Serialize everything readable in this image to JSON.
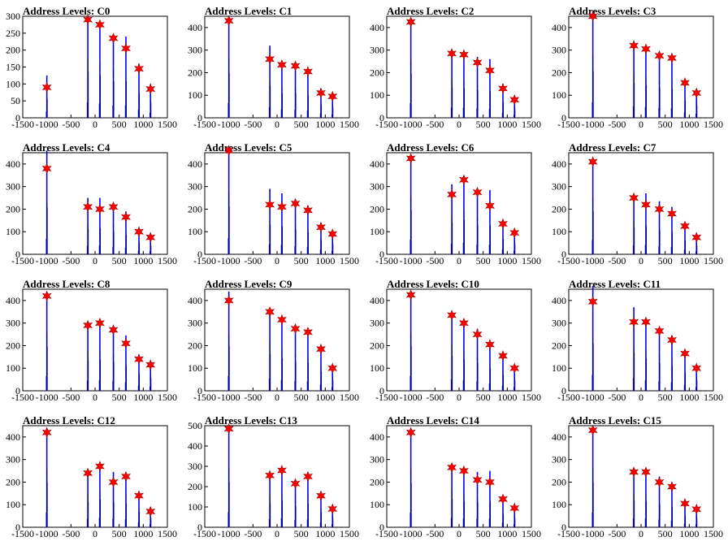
{
  "colors": {
    "bar": "#0000ff",
    "marker": "#ff0000",
    "marker_edge": "#990000",
    "axis": "#000000"
  },
  "chart_data": [
    {
      "type": "bar",
      "title": "Address Levels: C0",
      "xlim": [
        -1500,
        1500
      ],
      "ylim": [
        0,
        300
      ],
      "yticks": [
        0,
        50,
        100,
        150,
        200,
        250,
        300
      ],
      "xticks": [
        -1500,
        -1000,
        -500,
        0,
        500,
        1000,
        1500
      ],
      "peaks": [
        {
          "x": -1000,
          "y": 90,
          "bar": 125
        },
        {
          "x": -150,
          "y": 290,
          "bar": 300
        },
        {
          "x": 100,
          "y": 275,
          "bar": 280
        },
        {
          "x": 380,
          "y": 235,
          "bar": 240
        },
        {
          "x": 640,
          "y": 205,
          "bar": 240
        },
        {
          "x": 910,
          "y": 145,
          "bar": 160
        },
        {
          "x": 1150,
          "y": 85,
          "bar": 100
        }
      ]
    },
    {
      "type": "bar",
      "title": "Address Levels: C1",
      "xlim": [
        -1500,
        1500
      ],
      "ylim": [
        0,
        450
      ],
      "yticks": [
        0,
        100,
        200,
        300,
        400
      ],
      "xticks": [
        -1500,
        -1000,
        -500,
        0,
        500,
        1000,
        1500
      ],
      "peaks": [
        {
          "x": -1000,
          "y": 430,
          "bar": 440
        },
        {
          "x": -150,
          "y": 260,
          "bar": 320
        },
        {
          "x": 100,
          "y": 235,
          "bar": 240
        },
        {
          "x": 380,
          "y": 230,
          "bar": 240
        },
        {
          "x": 640,
          "y": 205,
          "bar": 215
        },
        {
          "x": 910,
          "y": 110,
          "bar": 130
        },
        {
          "x": 1150,
          "y": 95,
          "bar": 100
        }
      ]
    },
    {
      "type": "bar",
      "title": "Address Levels: C2",
      "xlim": [
        -1500,
        1500
      ],
      "ylim": [
        0,
        450
      ],
      "yticks": [
        0,
        100,
        200,
        300,
        400
      ],
      "xticks": [
        -1500,
        -1000,
        -500,
        0,
        500,
        1000,
        1500
      ],
      "peaks": [
        {
          "x": -1000,
          "y": 425,
          "bar": 435
        },
        {
          "x": -150,
          "y": 285,
          "bar": 300
        },
        {
          "x": 100,
          "y": 280,
          "bar": 290
        },
        {
          "x": 380,
          "y": 245,
          "bar": 270
        },
        {
          "x": 640,
          "y": 210,
          "bar": 260
        },
        {
          "x": 910,
          "y": 130,
          "bar": 150
        },
        {
          "x": 1150,
          "y": 80,
          "bar": 90
        }
      ]
    },
    {
      "type": "bar",
      "title": "Address Levels: C3",
      "xlim": [
        -1500,
        1500
      ],
      "ylim": [
        0,
        450
      ],
      "yticks": [
        0,
        100,
        200,
        300,
        400
      ],
      "xticks": [
        -1500,
        -1000,
        -500,
        0,
        500,
        1000,
        1500
      ],
      "peaks": [
        {
          "x": -1000,
          "y": 450,
          "bar": 460
        },
        {
          "x": -150,
          "y": 320,
          "bar": 340
        },
        {
          "x": 100,
          "y": 305,
          "bar": 320
        },
        {
          "x": 380,
          "y": 275,
          "bar": 290
        },
        {
          "x": 640,
          "y": 265,
          "bar": 280
        },
        {
          "x": 910,
          "y": 155,
          "bar": 165
        },
        {
          "x": 1150,
          "y": 110,
          "bar": 120
        }
      ]
    },
    {
      "type": "bar",
      "title": "Address Levels: C4",
      "xlim": [
        -1500,
        1500
      ],
      "ylim": [
        0,
        450
      ],
      "yticks": [
        0,
        100,
        200,
        300,
        400
      ],
      "xticks": [
        -1500,
        -1000,
        -500,
        0,
        500,
        1000,
        1500
      ],
      "peaks": [
        {
          "x": -1000,
          "y": 380,
          "bar": 460
        },
        {
          "x": -150,
          "y": 210,
          "bar": 250
        },
        {
          "x": 100,
          "y": 200,
          "bar": 250
        },
        {
          "x": 380,
          "y": 210,
          "bar": 220
        },
        {
          "x": 640,
          "y": 165,
          "bar": 190
        },
        {
          "x": 910,
          "y": 100,
          "bar": 110
        },
        {
          "x": 1150,
          "y": 75,
          "bar": 85
        }
      ]
    },
    {
      "type": "bar",
      "title": "Address Levels: C5",
      "xlim": [
        -1500,
        1500
      ],
      "ylim": [
        0,
        450
      ],
      "yticks": [
        0,
        100,
        200,
        300,
        400
      ],
      "xticks": [
        -1500,
        -1000,
        -500,
        0,
        500,
        1000,
        1500
      ],
      "peaks": [
        {
          "x": -1000,
          "y": 460,
          "bar": 470
        },
        {
          "x": -150,
          "y": 220,
          "bar": 290
        },
        {
          "x": 100,
          "y": 210,
          "bar": 270
        },
        {
          "x": 380,
          "y": 225,
          "bar": 240
        },
        {
          "x": 640,
          "y": 195,
          "bar": 215
        },
        {
          "x": 910,
          "y": 120,
          "bar": 140
        },
        {
          "x": 1150,
          "y": 90,
          "bar": 100
        }
      ]
    },
    {
      "type": "bar",
      "title": "Address Levels: C6",
      "xlim": [
        -1500,
        1500
      ],
      "ylim": [
        0,
        450
      ],
      "yticks": [
        0,
        100,
        200,
        300,
        400
      ],
      "xticks": [
        -1500,
        -1000,
        -500,
        0,
        500,
        1000,
        1500
      ],
      "peaks": [
        {
          "x": -1000,
          "y": 425,
          "bar": 435
        },
        {
          "x": -150,
          "y": 265,
          "bar": 310
        },
        {
          "x": 100,
          "y": 330,
          "bar": 340
        },
        {
          "x": 380,
          "y": 275,
          "bar": 285
        },
        {
          "x": 640,
          "y": 215,
          "bar": 285
        },
        {
          "x": 910,
          "y": 135,
          "bar": 150
        },
        {
          "x": 1150,
          "y": 95,
          "bar": 100
        }
      ]
    },
    {
      "type": "bar",
      "title": "Address Levels: C7",
      "xlim": [
        -1500,
        1500
      ],
      "ylim": [
        0,
        450
      ],
      "yticks": [
        0,
        100,
        200,
        300,
        400
      ],
      "xticks": [
        -1500,
        -1000,
        -500,
        0,
        500,
        1000,
        1500
      ],
      "peaks": [
        {
          "x": -1000,
          "y": 410,
          "bar": 420
        },
        {
          "x": -150,
          "y": 250,
          "bar": 260
        },
        {
          "x": 100,
          "y": 220,
          "bar": 270
        },
        {
          "x": 380,
          "y": 200,
          "bar": 235
        },
        {
          "x": 640,
          "y": 180,
          "bar": 210
        },
        {
          "x": 910,
          "y": 125,
          "bar": 135
        },
        {
          "x": 1150,
          "y": 75,
          "bar": 85
        }
      ]
    },
    {
      "type": "bar",
      "title": "Address Levels: C8",
      "xlim": [
        -1500,
        1500
      ],
      "ylim": [
        0,
        450
      ],
      "yticks": [
        0,
        100,
        200,
        300,
        400
      ],
      "xticks": [
        -1500,
        -1000,
        -500,
        0,
        500,
        1000,
        1500
      ],
      "peaks": [
        {
          "x": -1000,
          "y": 420,
          "bar": 430
        },
        {
          "x": -150,
          "y": 290,
          "bar": 300
        },
        {
          "x": 100,
          "y": 300,
          "bar": 305
        },
        {
          "x": 380,
          "y": 270,
          "bar": 280
        },
        {
          "x": 640,
          "y": 210,
          "bar": 245
        },
        {
          "x": 910,
          "y": 140,
          "bar": 160
        },
        {
          "x": 1150,
          "y": 115,
          "bar": 125
        }
      ]
    },
    {
      "type": "bar",
      "title": "Address Levels: C9",
      "xlim": [
        -1500,
        1500
      ],
      "ylim": [
        0,
        450
      ],
      "yticks": [
        0,
        100,
        200,
        300,
        400
      ],
      "xticks": [
        -1500,
        -1000,
        -500,
        0,
        500,
        1000,
        1500
      ],
      "peaks": [
        {
          "x": -1000,
          "y": 400,
          "bar": 440
        },
        {
          "x": -150,
          "y": 350,
          "bar": 360
        },
        {
          "x": 100,
          "y": 315,
          "bar": 320
        },
        {
          "x": 380,
          "y": 275,
          "bar": 285
        },
        {
          "x": 640,
          "y": 260,
          "bar": 275
        },
        {
          "x": 910,
          "y": 185,
          "bar": 190
        },
        {
          "x": 1150,
          "y": 100,
          "bar": 105
        }
      ]
    },
    {
      "type": "bar",
      "title": "Address Levels: C10",
      "xlim": [
        -1500,
        1500
      ],
      "ylim": [
        0,
        450
      ],
      "yticks": [
        0,
        100,
        200,
        300,
        400
      ],
      "xticks": [
        -1500,
        -1000,
        -500,
        0,
        500,
        1000,
        1500
      ],
      "peaks": [
        {
          "x": -1000,
          "y": 425,
          "bar": 440
        },
        {
          "x": -150,
          "y": 335,
          "bar": 340
        },
        {
          "x": 100,
          "y": 300,
          "bar": 310
        },
        {
          "x": 380,
          "y": 250,
          "bar": 275
        },
        {
          "x": 640,
          "y": 205,
          "bar": 215
        },
        {
          "x": 910,
          "y": 155,
          "bar": 160
        },
        {
          "x": 1150,
          "y": 100,
          "bar": 105
        }
      ]
    },
    {
      "type": "bar",
      "title": "Address Levels: C11",
      "xlim": [
        -1500,
        1500
      ],
      "ylim": [
        0,
        450
      ],
      "yticks": [
        0,
        100,
        200,
        300,
        400
      ],
      "xticks": [
        -1500,
        -1000,
        -500,
        0,
        500,
        1000,
        1500
      ],
      "peaks": [
        {
          "x": -1000,
          "y": 395,
          "bar": 465
        },
        {
          "x": -150,
          "y": 305,
          "bar": 370
        },
        {
          "x": 100,
          "y": 305,
          "bar": 315
        },
        {
          "x": 380,
          "y": 265,
          "bar": 270
        },
        {
          "x": 640,
          "y": 225,
          "bar": 245
        },
        {
          "x": 910,
          "y": 165,
          "bar": 175
        },
        {
          "x": 1150,
          "y": 100,
          "bar": 105
        }
      ]
    },
    {
      "type": "bar",
      "title": "Address Levels: C12",
      "xlim": [
        -1500,
        1500
      ],
      "ylim": [
        0,
        450
      ],
      "yticks": [
        0,
        100,
        200,
        300,
        400
      ],
      "xticks": [
        -1500,
        -1000,
        -500,
        0,
        500,
        1000,
        1500
      ],
      "peaks": [
        {
          "x": -1000,
          "y": 420,
          "bar": 440
        },
        {
          "x": -150,
          "y": 240,
          "bar": 250
        },
        {
          "x": 100,
          "y": 270,
          "bar": 275
        },
        {
          "x": 380,
          "y": 200,
          "bar": 245
        },
        {
          "x": 640,
          "y": 225,
          "bar": 235
        },
        {
          "x": 910,
          "y": 140,
          "bar": 150
        },
        {
          "x": 1150,
          "y": 70,
          "bar": 90
        }
      ]
    },
    {
      "type": "bar",
      "title": "Address Levels: C13",
      "xlim": [
        -1500,
        1500
      ],
      "ylim": [
        0,
        500
      ],
      "yticks": [
        0,
        100,
        200,
        300,
        400,
        500
      ],
      "xticks": [
        -1500,
        -1000,
        -500,
        0,
        500,
        1000,
        1500
      ],
      "peaks": [
        {
          "x": -1000,
          "y": 485,
          "bar": 490
        },
        {
          "x": -150,
          "y": 255,
          "bar": 265
        },
        {
          "x": 100,
          "y": 280,
          "bar": 290
        },
        {
          "x": 380,
          "y": 215,
          "bar": 230
        },
        {
          "x": 640,
          "y": 250,
          "bar": 255
        },
        {
          "x": 910,
          "y": 155,
          "bar": 160
        },
        {
          "x": 1150,
          "y": 90,
          "bar": 100
        }
      ]
    },
    {
      "type": "bar",
      "title": "Address Levels: C14",
      "xlim": [
        -1500,
        1500
      ],
      "ylim": [
        0,
        450
      ],
      "yticks": [
        0,
        100,
        200,
        300,
        400
      ],
      "xticks": [
        -1500,
        -1000,
        -500,
        0,
        500,
        1000,
        1500
      ],
      "peaks": [
        {
          "x": -1000,
          "y": 420,
          "bar": 430
        },
        {
          "x": -150,
          "y": 265,
          "bar": 275
        },
        {
          "x": 100,
          "y": 250,
          "bar": 255
        },
        {
          "x": 380,
          "y": 210,
          "bar": 245
        },
        {
          "x": 640,
          "y": 200,
          "bar": 250
        },
        {
          "x": 910,
          "y": 125,
          "bar": 130
        },
        {
          "x": 1150,
          "y": 85,
          "bar": 90
        }
      ]
    },
    {
      "type": "bar",
      "title": "Address Levels: C15",
      "xlim": [
        -1500,
        1500
      ],
      "ylim": [
        0,
        450
      ],
      "yticks": [
        0,
        100,
        200,
        300,
        400
      ],
      "xticks": [
        -1500,
        -1000,
        -500,
        0,
        500,
        1000,
        1500
      ],
      "peaks": [
        {
          "x": -1000,
          "y": 430,
          "bar": 440
        },
        {
          "x": -150,
          "y": 245,
          "bar": 260
        },
        {
          "x": 100,
          "y": 245,
          "bar": 255
        },
        {
          "x": 380,
          "y": 200,
          "bar": 225
        },
        {
          "x": 640,
          "y": 180,
          "bar": 195
        },
        {
          "x": 910,
          "y": 105,
          "bar": 110
        },
        {
          "x": 1150,
          "y": 80,
          "bar": 85
        }
      ]
    }
  ]
}
